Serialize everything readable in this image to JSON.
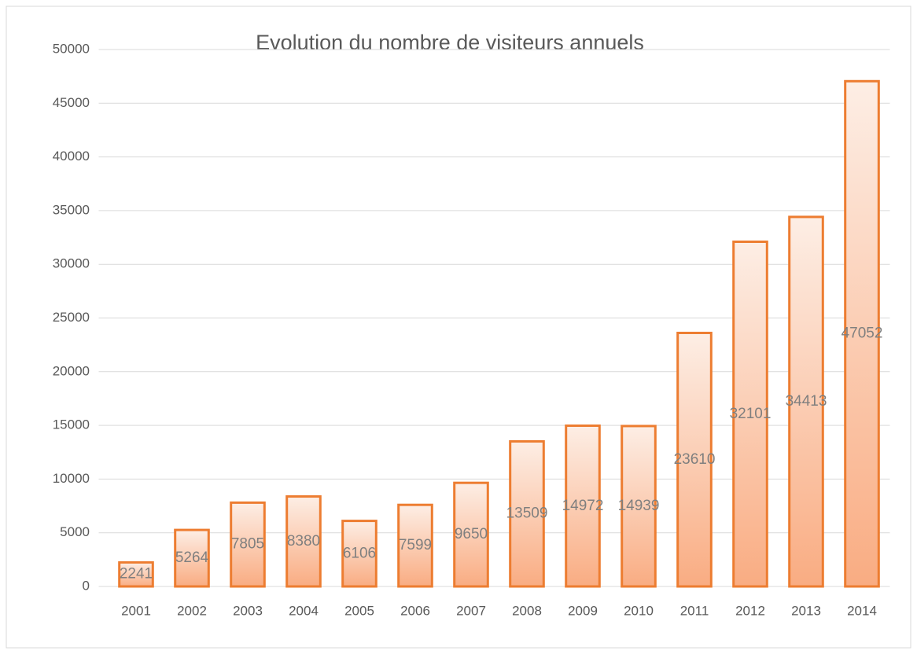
{
  "chart_data": {
    "type": "bar",
    "title": "Evolution du nombre de visiteurs annuels",
    "categories": [
      "2001",
      "2002",
      "2003",
      "2004",
      "2005",
      "2006",
      "2007",
      "2008",
      "2009",
      "2010",
      "2011",
      "2012",
      "2013",
      "2014"
    ],
    "values": [
      2241,
      5264,
      7805,
      8380,
      6106,
      7599,
      9650,
      13509,
      14972,
      14939,
      23610,
      32101,
      34413,
      47052
    ],
    "color": "#ed7d31",
    "ylim": [
      0,
      50000
    ],
    "yticks": [
      0,
      5000,
      10000,
      15000,
      20000,
      25000,
      30000,
      35000,
      40000,
      45000,
      50000
    ],
    "grid": true
  }
}
